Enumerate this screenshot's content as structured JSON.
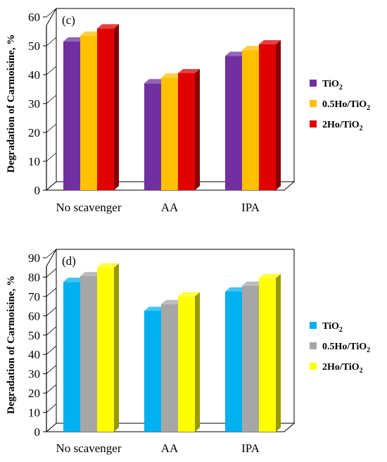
{
  "chart_data": [
    {
      "type": "bar",
      "panel_label": "(c)",
      "ylabel": "Degradation of Carmoisine, %",
      "categories": [
        "No scavenger",
        "AA",
        "IPA"
      ],
      "ylim": [
        0,
        60
      ],
      "yticks": [
        0,
        10,
        20,
        30,
        40,
        50,
        60
      ],
      "legend_position": "right",
      "series": [
        {
          "name": "TiO2",
          "name_parts": [
            "TiO",
            "2",
            ""
          ],
          "color": "#7030a0",
          "values": [
            51.5,
            37,
            46.5
          ]
        },
        {
          "name": "0.5Ho/TiO2",
          "name_parts": [
            "0.5Ho/TiO",
            "2",
            ""
          ],
          "color": "#ffc000",
          "values": [
            53.5,
            39,
            48.5
          ]
        },
        {
          "name": "2Ho/TiO2",
          "name_parts": [
            "2Ho/TiO",
            "2",
            ""
          ],
          "color": "#e00000",
          "values": [
            56,
            40.5,
            50.5
          ]
        }
      ]
    },
    {
      "type": "bar",
      "panel_label": "(d)",
      "ylabel": "Degradation of Carmoisine, %",
      "categories": [
        "No scavenger",
        "AA",
        "IPA"
      ],
      "ylim": [
        0,
        90
      ],
      "yticks": [
        0,
        10,
        20,
        30,
        40,
        50,
        60,
        70,
        80,
        90
      ],
      "legend_position": "right",
      "series": [
        {
          "name": "TiO2",
          "name_parts": [
            "TiO",
            "2",
            ""
          ],
          "color": "#00b0f0",
          "values": [
            77.5,
            62.5,
            72.5
          ]
        },
        {
          "name": "0.5Ho/TiO2",
          "name_parts": [
            "0.5Ho/TiO",
            "2",
            ""
          ],
          "color": "#a6a6a6",
          "values": [
            80.5,
            66,
            75.5
          ]
        },
        {
          "name": "2Ho/TiO2",
          "name_parts": [
            "2Ho/TiO",
            "2",
            ""
          ],
          "color": "#ffff00",
          "values": [
            85,
            70,
            79.5
          ]
        }
      ]
    }
  ]
}
